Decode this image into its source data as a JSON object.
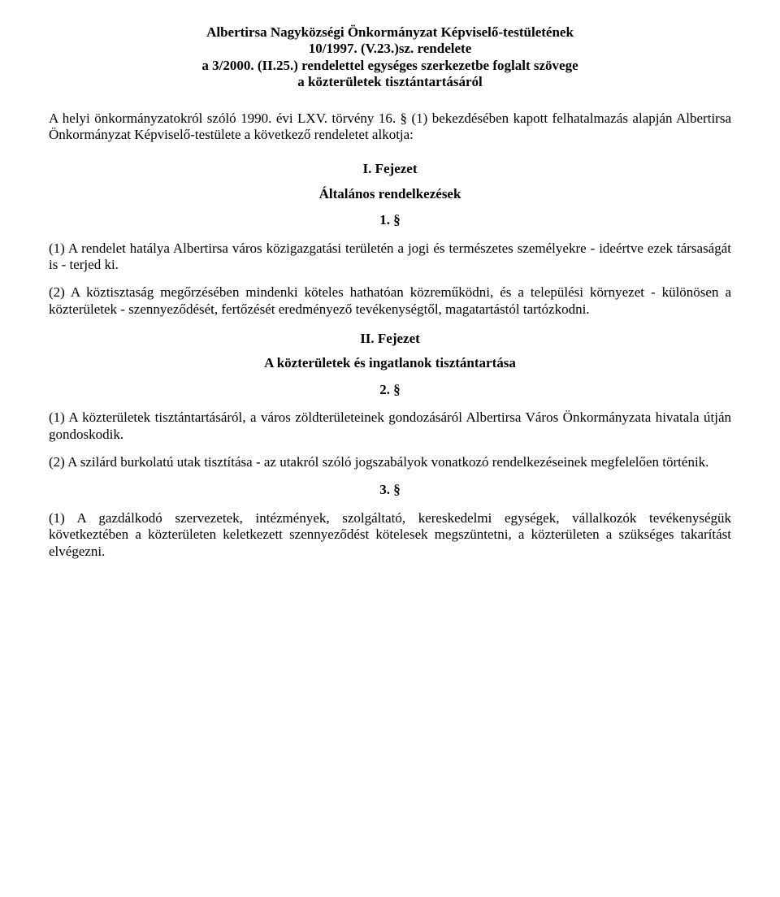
{
  "title": {
    "line1": "Albertirsa Nagyközségi Önkormányzat Képviselő-testületének",
    "line2": "10/1997. (V.23.)sz. rendelete",
    "line3": "a 3/2000. (II.25.) rendelettel egységes szerkezetbe foglalt szövege",
    "line4": "a közterületek tisztántartásáról"
  },
  "intro": "A helyi önkormányzatokról szóló 1990. évi LXV. törvény 16. § (1) bekezdésében kapott felhatalmazás alapján Albertirsa Önkormányzat Képviselő-testülete a következő rendeletet alkotja:",
  "chapter1": {
    "label": "I. Fejezet",
    "heading": "Általános rendelkezések",
    "section1": {
      "num": "1. §",
      "p1": "(1) A rendelet hatálya Albertirsa város közigazgatási területén a jogi és természetes személyekre - ideértve ezek társaságát is - terjed ki.",
      "p2": "(2) A köztisztaság megőrzésében mindenki köteles hathatóan közreműködni, és a települési környezet - különösen a közterületek - szennyeződését, fertőzését eredményező tevékenységtől, magatartástól tartózkodni."
    }
  },
  "chapter2": {
    "label": "II. Fejezet",
    "heading": "A közterületek és ingatlanok tisztántartása",
    "section2": {
      "num": "2. §",
      "p1": "(1) A közterületek tisztántartásáról, a város  zöldterületeinek gondozásáról Albertirsa Város Önkormányzata hivatala útján gondoskodik.",
      "p2": "(2) A szilárd burkolatú utak tisztítása - az utakról szóló jogszabályok vonatkozó rendelkezéseinek megfelelően történik."
    },
    "section3": {
      "num": "3. §",
      "p1": "(1) A gazdálkodó szervezetek, intézmények, szolgáltató, kereskedelmi egységek, vállalkozók tevékenységük következtében a közterületen keletkezett szennyeződést kötelesek megszüntetni, a közterületen a szükséges takarítást elvégezni."
    }
  }
}
